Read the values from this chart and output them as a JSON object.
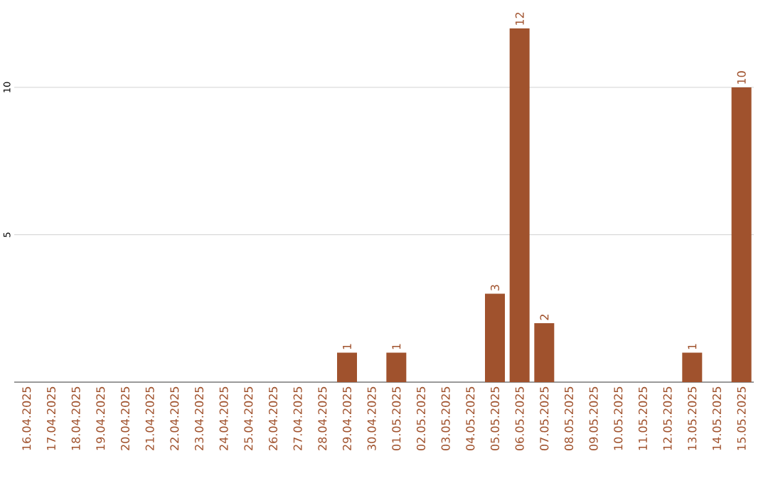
{
  "chart_data": {
    "type": "bar",
    "categories": [
      "16.04.2025",
      "17.04.2025",
      "18.04.2025",
      "19.04.2025",
      "20.04.2025",
      "21.04.2025",
      "22.04.2025",
      "23.04.2025",
      "24.04.2025",
      "25.04.2025",
      "26.04.2025",
      "27.04.2025",
      "28.04.2025",
      "29.04.2025",
      "30.04.2025",
      "01.05.2025",
      "02.05.2025",
      "03.05.2025",
      "04.05.2025",
      "05.05.2025",
      "06.05.2025",
      "07.05.2025",
      "08.05.2025",
      "09.05.2025",
      "10.05.2025",
      "11.05.2025",
      "12.05.2025",
      "13.05.2025",
      "14.05.2025",
      "15.05.2025"
    ],
    "values": [
      0,
      0,
      0,
      0,
      0,
      0,
      0,
      0,
      0,
      0,
      0,
      0,
      0,
      1,
      0,
      1,
      0,
      0,
      0,
      3,
      12,
      2,
      0,
      0,
      0,
      0,
      0,
      1,
      0,
      10
    ],
    "value_labels": [
      null,
      null,
      null,
      null,
      null,
      null,
      null,
      null,
      null,
      null,
      null,
      null,
      null,
      "1",
      null,
      "1",
      null,
      null,
      null,
      "3",
      "12",
      "2",
      null,
      null,
      null,
      null,
      null,
      "1",
      null,
      "10"
    ],
    "color": "#a0522d",
    "ylim": [
      0,
      12
    ],
    "yticks": [
      5,
      10
    ],
    "grid": "y"
  }
}
